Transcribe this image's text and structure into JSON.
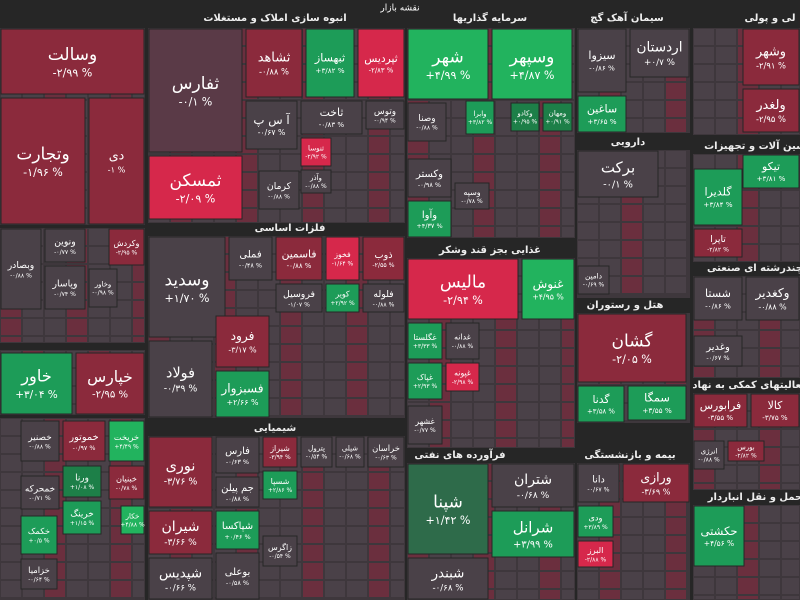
{
  "title": "نقشه بازار",
  "sectors": [
    {
      "tiles": [
        {
          "name": "وسالت",
          "change": "-۲/۹۹ %",
          "color": "#8b2a3c"
        },
        {
          "name": "وتجارت",
          "change": "-۱/۹۶ %",
          "color": "#8b2a3c"
        },
        {
          "name": "دی",
          "change": "-۱ %",
          "color": "#8b2a3c"
        }
      ]
    },
    {
      "tiles": [
        {
          "name": "وبصادر",
          "change": "-۰/۸۸ %",
          "color": "#4a4148"
        },
        {
          "name": "ونوین",
          "change": "-۰/۷۷ %",
          "color": "#4a4148"
        },
        {
          "name": "وکردش",
          "change": "-۲/۹۵ %",
          "color": "#8b2a3c"
        },
        {
          "name": "وپاسار",
          "change": "-۰/۷۴ %",
          "color": "#4a4148"
        },
        {
          "name": "وخاور",
          "change": "-۰/۹۸ %",
          "color": "#4a4148"
        }
      ]
    },
    {
      "tiles": [
        {
          "name": "خاور",
          "change": "+۳/۰۴ %",
          "color": "#1d9c58"
        },
        {
          "name": "خپارس",
          "change": "-۲/۹۵ %",
          "color": "#8b2a3c"
        }
      ]
    },
    {
      "tiles": [
        {
          "name": "خصنیر",
          "change": "-۰/۸۸ %",
          "color": "#4a4148"
        },
        {
          "name": "خموتور",
          "change": "-۰/۹۷ %",
          "color": "#8b2a3c"
        },
        {
          "name": "خریخت",
          "change": "+۴/۴۹ %",
          "color": "#22b35e"
        },
        {
          "name": "خمحرکه",
          "change": "-۰/۷۱ %",
          "color": "#4a4148"
        },
        {
          "name": "ورنا",
          "change": "+۱/۰۸ %",
          "color": "#1d7f48"
        },
        {
          "name": "خبنیان",
          "change": "-۰/۷۸ %",
          "color": "#8b2a3c"
        },
        {
          "name": "خکمک",
          "change": "+۰/۵ %",
          "color": "#1d9c58"
        },
        {
          "name": "خرینگ",
          "change": "+۱/۱۵ %",
          "color": "#1d9c58"
        },
        {
          "name": "خکار",
          "change": "+۴/۸۸ %",
          "color": "#22b35e"
        },
        {
          "name": "خزامیا",
          "change": "-۰/۶۴ %",
          "color": "#4a4148"
        }
      ]
    },
    {
      "title": "انبوه سازی املاک و مستغلات",
      "tiles": [
        {
          "name": "ثفارس",
          "change": "-۰/۱ %",
          "color": "#5a3a47"
        },
        {
          "name": "ثمسکن",
          "change": "-۲/۰۹ %",
          "color": "#d6284b"
        },
        {
          "name": "ثشاهد",
          "change": "-۰/۸۸ %",
          "color": "#8b2a3c"
        },
        {
          "name": "ثبهساز",
          "change": "+۳/۸۲ %",
          "color": "#1d9c58"
        },
        {
          "name": "ثپردیس",
          "change": "-۲/۸۳ %",
          "color": "#d6284b"
        },
        {
          "name": "آ س پ",
          "change": "-۰/۶۷ %",
          "color": "#4a4148"
        },
        {
          "name": "ثاخت",
          "change": "-۰/۸۳ %",
          "color": "#4a4148"
        },
        {
          "name": "وتوس",
          "change": "-۰/۹۴ %",
          "color": "#4a4148"
        },
        {
          "name": "ثنوسا",
          "change": "-۲/۹۲ %",
          "color": "#d6284b"
        },
        {
          "name": "کرمان",
          "change": "-۰/۸۸ %",
          "color": "#4a4148"
        },
        {
          "name": "وآذر",
          "change": "-۰/۸۸ %",
          "color": "#4a4148"
        }
      ]
    },
    {
      "title": "فلزات اساسی",
      "tiles": [
        {
          "name": "وسدید",
          "change": "+۱/۷۰ %",
          "color": "#4a4148"
        },
        {
          "name": "فملی",
          "change": "-۰/۴۸ %",
          "color": "#4a4148"
        },
        {
          "name": "فاسمین",
          "change": "-۰/۸۸ %",
          "color": "#8b2a3c"
        },
        {
          "name": "فخوز",
          "change": "-۱/۶۴ %",
          "color": "#d6284b"
        },
        {
          "name": "ذوب",
          "change": "-۲/۵۵ %",
          "color": "#8b2a3c"
        },
        {
          "name": "فروسیل",
          "change": "-۱/۰۷ %",
          "color": "#4a4148"
        },
        {
          "name": "کویر",
          "change": "+۲/۹۲ %",
          "color": "#1d9c58"
        },
        {
          "name": "فلوله",
          "change": "-۰/۸۸ %",
          "color": "#4a4148"
        },
        {
          "name": "فولاد",
          "change": "-۰/۳۹ %",
          "color": "#4a4148"
        },
        {
          "name": "فرود",
          "change": "-۳/۱۷ %",
          "color": "#8b2a3c"
        },
        {
          "name": "فسبزوار",
          "change": "+۲/۶۶ %",
          "color": "#1d9c58"
        }
      ]
    },
    {
      "title": "شیمیایی",
      "tiles": [
        {
          "name": "نوری",
          "change": "-۳/۷۶ %",
          "color": "#8b2a3c"
        },
        {
          "name": "شیران",
          "change": "-۳/۶۶ %",
          "color": "#8b2a3c"
        },
        {
          "name": "شپدیس",
          "change": "-۰/۶۶ %",
          "color": "#4a4148"
        },
        {
          "name": "فارس",
          "change": "-۰/۶۳ %",
          "color": "#4a4148"
        },
        {
          "name": "جم پیلن",
          "change": "-۰/۸۸ %",
          "color": "#4a4148"
        },
        {
          "name": "شپاکسا",
          "change": "+۰/۴۶ %",
          "color": "#1d9c58"
        },
        {
          "name": "بوعلی",
          "change": "-۰/۵۸ %",
          "color": "#4a4148"
        },
        {
          "name": "شیراز",
          "change": "-۳/۹۴ %",
          "color": "#8b2a3c"
        },
        {
          "name": "پترول",
          "change": "-۰/۵۴ %",
          "color": "#4a4148"
        },
        {
          "name": "شپلی",
          "change": "-۰/۶۸ %",
          "color": "#4a4148"
        },
        {
          "name": "خراسان",
          "change": "-۰/۶۳ %",
          "color": "#4a4148"
        },
        {
          "name": "شسپا",
          "change": "+۲/۸۶ %",
          "color": "#1d9c58"
        },
        {
          "name": "زاگرس",
          "change": "-۰/۵۴ %",
          "color": "#4a4148"
        }
      ]
    },
    {
      "title": "سرمایه گذاریها",
      "tiles": [
        {
          "name": "شهر",
          "change": "+۴/۹۹ %",
          "color": "#22b35e"
        },
        {
          "name": "وسپهر",
          "change": "+۴/۸۷ %",
          "color": "#22b35e"
        },
        {
          "name": "وصنا",
          "change": "-۰/۸۸ %",
          "color": "#4a4148"
        },
        {
          "name": "وابرا",
          "change": "+۳/۸۲ %",
          "color": "#1d9c58"
        },
        {
          "name": "وکادو",
          "change": "+۰/۹۵ %",
          "color": "#1d7f48"
        },
        {
          "name": "ومهان",
          "change": "+۰/۹۱ %",
          "color": "#1d7f48"
        },
        {
          "name": "وکستر",
          "change": "-۰/۹۸ %",
          "color": "#4a4148"
        },
        {
          "name": "وسپه",
          "change": "-۰/۷۸ %",
          "color": "#4a4148"
        },
        {
          "name": "وآوا",
          "change": "+۴/۳۷ %",
          "color": "#1d9c58"
        }
      ]
    },
    {
      "title": "غذایی بجز قند وشکر",
      "tiles": [
        {
          "name": "مالیس",
          "change": "-۲/۹۴ %",
          "color": "#d6284b"
        },
        {
          "name": "غنوش",
          "change": "+۴/۹۵ %",
          "color": "#22b35e"
        },
        {
          "name": "غگلستا",
          "change": "+۳/۳۳ %",
          "color": "#1d9c58"
        },
        {
          "name": "غدانه",
          "change": "-۰/۸۸ %",
          "color": "#4a4148"
        },
        {
          "name": "غپاک",
          "change": "+۲/۹۳ %",
          "color": "#1d9c58"
        },
        {
          "name": "غپونه",
          "change": "-۲/۹۸ %",
          "color": "#d6284b"
        },
        {
          "name": "غشهر",
          "change": "-۰/۷۷ %",
          "color": "#4a4148"
        }
      ]
    },
    {
      "title": "فرآورده های نفتی",
      "tiles": [
        {
          "name": "شپنا",
          "change": "+۱/۴۲ %",
          "color": "#2e6b4a"
        },
        {
          "name": "شتران",
          "change": "-۰/۶۸ %",
          "color": "#4a4148"
        },
        {
          "name": "شرانل",
          "change": "+۳/۹۹ %",
          "color": "#1d9c58"
        },
        {
          "name": "شبندر",
          "change": "-۰/۶۸ %",
          "color": "#4a4148"
        }
      ]
    },
    {
      "title": "سیمان آهک گچ",
      "tiles": [
        {
          "name": "سیزوا",
          "change": "-۰/۸۶ %",
          "color": "#4a4148"
        },
        {
          "name": "اردستان",
          "change": "+۰/۷ %",
          "color": "#4a4148"
        },
        {
          "name": "ساغین",
          "change": "+۳/۶۵ %",
          "color": "#1d9c58"
        }
      ]
    },
    {
      "title": "دارویی",
      "tiles": [
        {
          "name": "برکت",
          "change": "-۰/۱ %",
          "color": "#4a4148"
        },
        {
          "name": "دامین",
          "change": "-۰/۶۹ %",
          "color": "#4a4148"
        }
      ]
    },
    {
      "title": "هتل و رستوران",
      "tiles": [
        {
          "name": "گشان",
          "change": "-۲/۰۵ %",
          "color": "#8b2a3c"
        },
        {
          "name": "سمگا",
          "change": "+۳/۵۵ %",
          "color": "#1d9c58"
        },
        {
          "name": "گدنا",
          "change": "+۳/۵۸ %",
          "color": "#1d9c58"
        }
      ]
    },
    {
      "title": "بیمه و بازنشستگی",
      "tiles": [
        {
          "name": "دانا",
          "change": "-۰/۶۷ %",
          "color": "#4a4148"
        },
        {
          "name": "ورازی",
          "change": "-۳/۶۹ %",
          "color": "#8b2a3c"
        },
        {
          "name": "ودی",
          "change": "+۳/۸۹ %",
          "color": "#1d9c58"
        },
        {
          "name": "البرز",
          "change": "-۲/۸۸ %",
          "color": "#d6284b"
        }
      ]
    },
    {
      "title": "لی و پولی",
      "tiles": [
        {
          "name": "وشهر",
          "change": "-۲/۹۱ %",
          "color": "#8b2a3c"
        },
        {
          "name": "ولغدر",
          "change": "-۲/۹۵ %",
          "color": "#8b2a3c"
        }
      ]
    },
    {
      "title": "ماشین آلات و تجهیزات",
      "tiles": [
        {
          "name": "تیکو",
          "change": "+۳/۸۱ %",
          "color": "#1d9c58"
        },
        {
          "name": "گلدیرا",
          "change": "+۳/۸۴ %",
          "color": "#1d9c58"
        },
        {
          "name": "تاپرا",
          "change": "-۲/۸۲ %",
          "color": "#8b2a3c"
        }
      ]
    },
    {
      "title": "چندرشته ای صنعتی",
      "tiles": [
        {
          "name": "شستا",
          "change": "-۰/۸۶ %",
          "color": "#4a4148"
        },
        {
          "name": "وکغدیر",
          "change": "-۰/۸۸ %",
          "color": "#4a4148"
        },
        {
          "name": "وغدیر",
          "change": "-۰/۶۷ %",
          "color": "#4a4148"
        }
      ]
    },
    {
      "title": "فعالیتهای کمکی به نهاد",
      "tiles": [
        {
          "name": "فرابورس",
          "change": "-۳/۵۵ %",
          "color": "#8b2a3c"
        },
        {
          "name": "کالا",
          "change": "-۳/۷۵ %",
          "color": "#8b2a3c"
        },
        {
          "name": "انرژی",
          "change": "-۰/۸۸ %",
          "color": "#4a4148"
        },
        {
          "name": "بورس",
          "change": "-۲/۸۲ %",
          "color": "#8b2a3c"
        }
      ]
    },
    {
      "title": "حمل و نقل انباردار",
      "tiles": [
        {
          "name": "حکشتی",
          "change": "+۴/۵۶ %",
          "color": "#1d9c58"
        }
      ]
    }
  ]
}
